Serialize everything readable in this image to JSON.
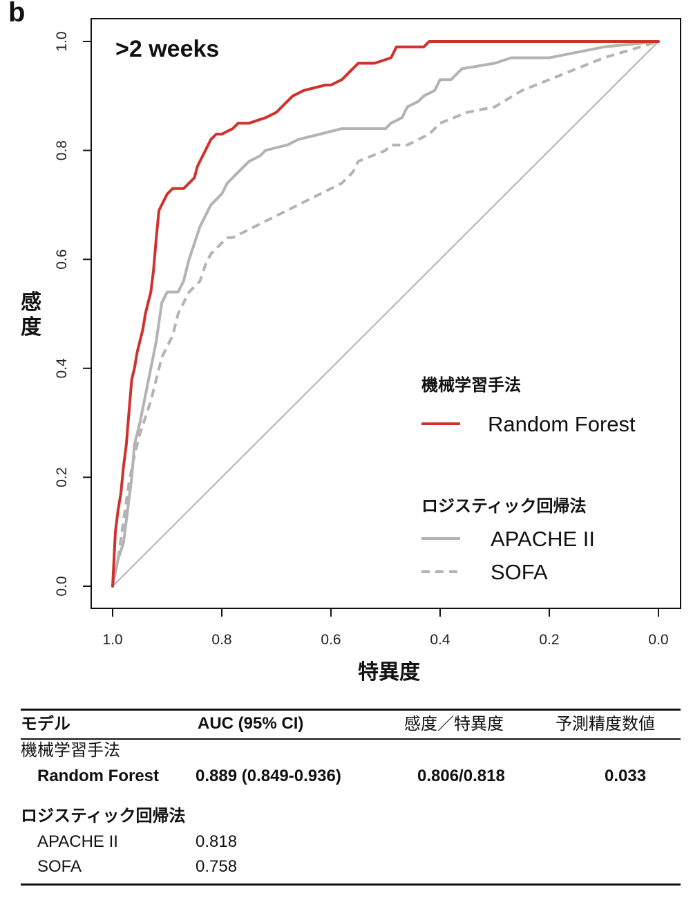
{
  "panel_label": "b",
  "chart_data": {
    "type": "line",
    "subtitle": ">2 weeks",
    "xlabel": "特異度",
    "ylabel": "感度",
    "x_reversed": true,
    "xlim": [
      1.0,
      0.0
    ],
    "ylim": [
      0.0,
      1.0
    ],
    "xticks": [
      "1.0",
      "0.8",
      "0.6",
      "0.4",
      "0.2",
      "0.0"
    ],
    "yticks": [
      "0.0",
      "0.2",
      "0.4",
      "0.6",
      "0.8",
      "1.0"
    ],
    "grid": false,
    "diagonal_reference": true,
    "legend": {
      "position": "bottom-right",
      "groups": [
        {
          "heading": "機械学習手法",
          "items": [
            {
              "name": "Random Forest",
              "color": "#d0312d",
              "style": "solid"
            }
          ]
        },
        {
          "heading": "ロジスティック回帰法",
          "items": [
            {
              "name": "APACHE II",
              "color": "#b3b3b3",
              "style": "solid"
            },
            {
              "name": "SOFA",
              "color": "#b3b3b3",
              "style": "dashed"
            }
          ]
        }
      ]
    },
    "series": [
      {
        "name": "Random Forest",
        "color": "#d0312d",
        "dash": "solid",
        "x": [
          1.0,
          0.995,
          0.99,
          0.985,
          0.98,
          0.975,
          0.97,
          0.965,
          0.96,
          0.955,
          0.95,
          0.945,
          0.94,
          0.935,
          0.93,
          0.925,
          0.92,
          0.915,
          0.91,
          0.9,
          0.89,
          0.87,
          0.86,
          0.85,
          0.845,
          0.84,
          0.83,
          0.82,
          0.81,
          0.8,
          0.78,
          0.77,
          0.75,
          0.72,
          0.7,
          0.69,
          0.68,
          0.67,
          0.65,
          0.61,
          0.6,
          0.58,
          0.57,
          0.55,
          0.53,
          0.52,
          0.49,
          0.48,
          0.43,
          0.42,
          0.0
        ],
        "y": [
          0.0,
          0.1,
          0.14,
          0.17,
          0.22,
          0.26,
          0.32,
          0.38,
          0.4,
          0.43,
          0.45,
          0.47,
          0.5,
          0.52,
          0.54,
          0.58,
          0.64,
          0.69,
          0.7,
          0.72,
          0.73,
          0.73,
          0.74,
          0.75,
          0.77,
          0.78,
          0.8,
          0.82,
          0.83,
          0.83,
          0.84,
          0.85,
          0.85,
          0.86,
          0.87,
          0.88,
          0.89,
          0.9,
          0.91,
          0.92,
          0.92,
          0.93,
          0.94,
          0.96,
          0.96,
          0.96,
          0.97,
          0.99,
          0.99,
          1.0,
          1.0
        ]
      },
      {
        "name": "APACHE II",
        "color": "#b3b3b3",
        "dash": "solid",
        "x": [
          1.0,
          0.99,
          0.98,
          0.97,
          0.965,
          0.96,
          0.95,
          0.94,
          0.93,
          0.92,
          0.91,
          0.9,
          0.88,
          0.87,
          0.86,
          0.85,
          0.84,
          0.83,
          0.82,
          0.8,
          0.79,
          0.77,
          0.75,
          0.73,
          0.72,
          0.68,
          0.66,
          0.62,
          0.58,
          0.5,
          0.49,
          0.47,
          0.46,
          0.44,
          0.43,
          0.41,
          0.4,
          0.38,
          0.36,
          0.3,
          0.27,
          0.2,
          0.1,
          0.0
        ],
        "y": [
          0.0,
          0.05,
          0.08,
          0.16,
          0.2,
          0.26,
          0.3,
          0.35,
          0.4,
          0.45,
          0.52,
          0.54,
          0.54,
          0.56,
          0.6,
          0.63,
          0.66,
          0.68,
          0.7,
          0.72,
          0.74,
          0.76,
          0.78,
          0.79,
          0.8,
          0.81,
          0.82,
          0.83,
          0.84,
          0.84,
          0.85,
          0.86,
          0.88,
          0.89,
          0.9,
          0.91,
          0.93,
          0.93,
          0.95,
          0.96,
          0.97,
          0.97,
          0.99,
          1.0
        ]
      },
      {
        "name": "SOFA",
        "color": "#b3b3b3",
        "dash": "dashed",
        "x": [
          1.0,
          0.99,
          0.98,
          0.97,
          0.96,
          0.95,
          0.94,
          0.93,
          0.92,
          0.91,
          0.9,
          0.89,
          0.88,
          0.87,
          0.86,
          0.84,
          0.83,
          0.82,
          0.8,
          0.79,
          0.78,
          0.76,
          0.74,
          0.72,
          0.68,
          0.66,
          0.64,
          0.6,
          0.58,
          0.56,
          0.55,
          0.5,
          0.49,
          0.46,
          0.42,
          0.4,
          0.35,
          0.3,
          0.25,
          0.2,
          0.15,
          0.1,
          0.0
        ],
        "y": [
          0.0,
          0.05,
          0.12,
          0.19,
          0.24,
          0.28,
          0.31,
          0.34,
          0.38,
          0.42,
          0.44,
          0.46,
          0.5,
          0.52,
          0.54,
          0.56,
          0.59,
          0.61,
          0.63,
          0.64,
          0.64,
          0.65,
          0.66,
          0.67,
          0.69,
          0.7,
          0.71,
          0.73,
          0.74,
          0.76,
          0.78,
          0.8,
          0.81,
          0.81,
          0.83,
          0.85,
          0.87,
          0.88,
          0.91,
          0.93,
          0.95,
          0.97,
          1.0
        ]
      }
    ]
  },
  "table": {
    "headers": {
      "model": "モデル",
      "auc": "AUC (95% CI)",
      "sens_spec": "感度／特異度",
      "ppv": "予測精度数値"
    },
    "group1_label": "機械学習手法",
    "rf": {
      "name": "Random Forest",
      "auc": "0.889 (0.849-0.936)",
      "sens_spec": "0.806/0.818",
      "ppv": "0.033"
    },
    "group2_label": "ロジスティック回帰法",
    "apache": {
      "name": "APACHE II",
      "auc": "0.818"
    },
    "sofa": {
      "name": "SOFA",
      "auc": "0.758"
    }
  }
}
